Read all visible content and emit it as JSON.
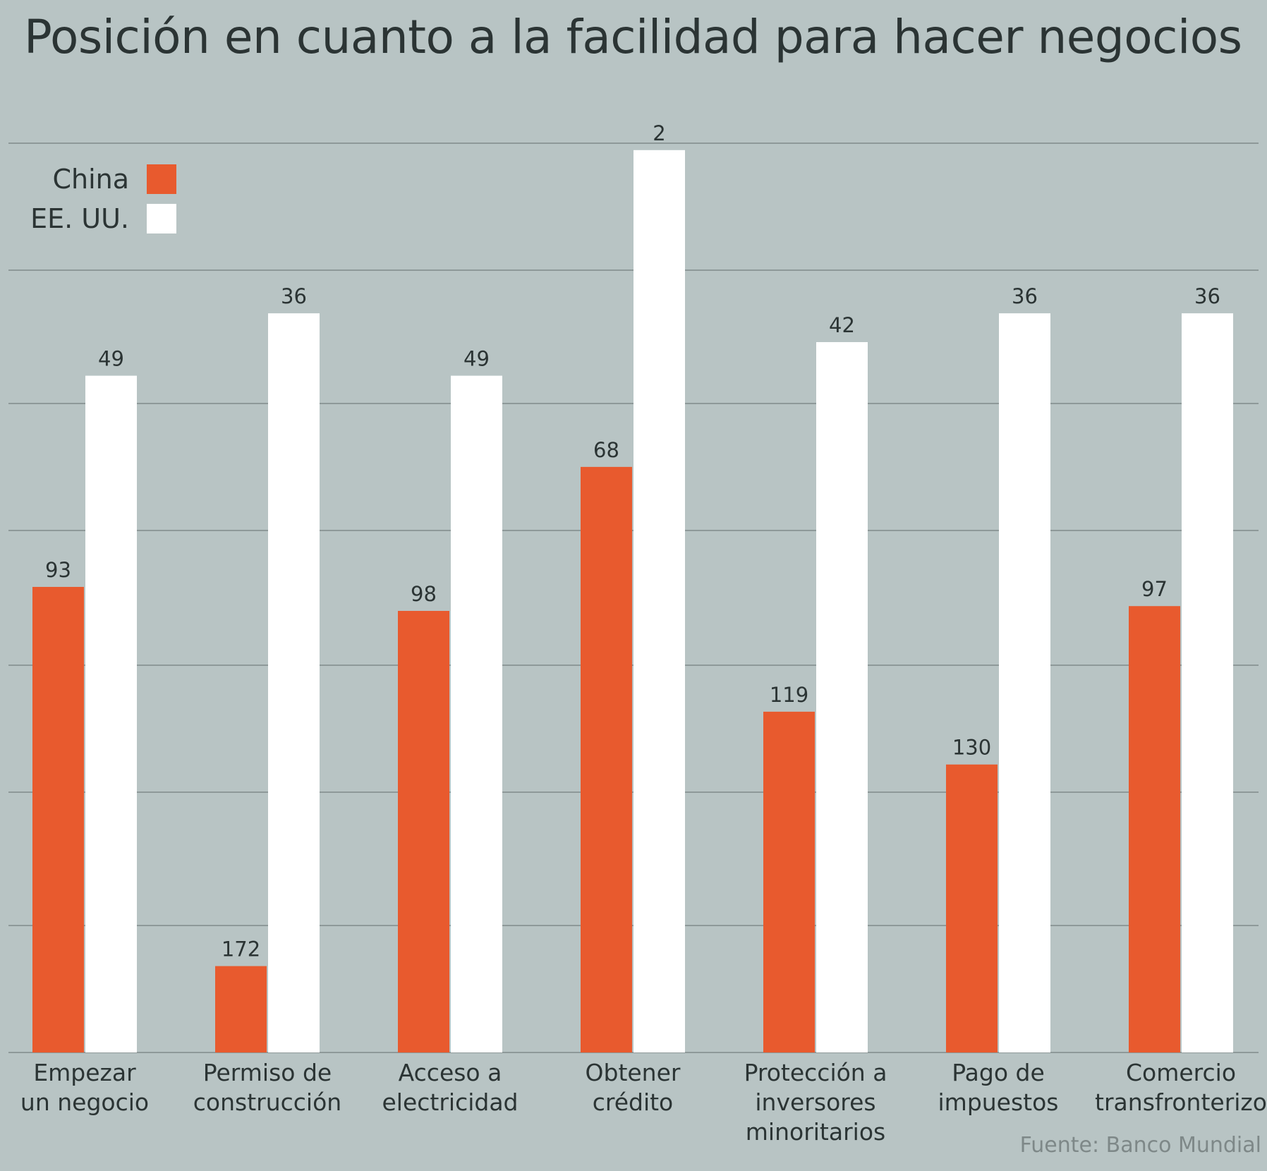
{
  "chart_data": {
    "type": "bar",
    "title": "Posición en cuanto a la facilidad para hacer negocios",
    "categories": [
      [
        "Empezar",
        "un negocio"
      ],
      [
        "Permiso de",
        "construcción"
      ],
      [
        "Acceso a",
        "electricidad"
      ],
      [
        "Obtener",
        "crédito"
      ],
      [
        "Protección a",
        "inversores",
        "minoritarios"
      ],
      [
        "Pago de",
        "impuestos"
      ],
      [
        "Comercio",
        "transfronterizo"
      ]
    ],
    "series": [
      {
        "name": "China",
        "color": "#e85a2e",
        "values": [
          93,
          172,
          98,
          68,
          119,
          130,
          97
        ]
      },
      {
        "name": "EE. UU.",
        "color": "#ffffff",
        "values": [
          49,
          36,
          49,
          2,
          42,
          36,
          36
        ]
      }
    ],
    "scale": "rank (inverted: 1 = best, tallest bar)",
    "rank_range": [
      1,
      190
    ],
    "legend_position": "top-left",
    "grid": true
  },
  "source": "Fuente: Banco Mundial"
}
